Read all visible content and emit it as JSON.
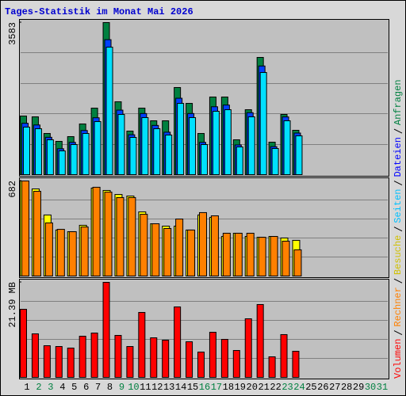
{
  "chart_data": {
    "type": "bar",
    "title": "Tages-Statistik im Monat Mai 2026",
    "categories": [
      "1",
      "2",
      "3",
      "4",
      "5",
      "6",
      "7",
      "8",
      "9",
      "10",
      "11",
      "12",
      "13",
      "14",
      "15",
      "16",
      "17",
      "18",
      "19",
      "20",
      "21",
      "22",
      "23",
      "24",
      "25",
      "26",
      "27",
      "28",
      "29",
      "30",
      "31"
    ],
    "category_colors": [
      "#000000",
      "#008040",
      "#008040",
      "#000000",
      "#000000",
      "#000000",
      "#000000",
      "#000000",
      "#008040",
      "#008040",
      "#000000",
      "#000000",
      "#000000",
      "#000000",
      "#000000",
      "#008040",
      "#008040",
      "#000000",
      "#000000",
      "#000000",
      "#000000",
      "#000000",
      "#008040",
      "#008040",
      "#000000",
      "#000000",
      "#000000",
      "#000000",
      "#000000",
      "#008040",
      "#008040"
    ],
    "grid": true,
    "panels": [
      {
        "ylim": [
          0,
          3583
        ],
        "yticks": [
          3583
        ],
        "series": [
          {
            "name": "Anfragen",
            "color": "#008040",
            "text_color": "#008040",
            "values": [
              1381,
              1362,
              970,
              784,
              896,
              1194,
              1567,
              3583,
              1717,
              1026,
              1567,
              1269,
              1269,
              2053,
              1679,
              970,
              1829,
              1829,
              821,
              1530,
              2762,
              765,
              1418,
              1045,
              null,
              null,
              null,
              null,
              null,
              null,
              null
            ]
          },
          {
            "name": "Dateien",
            "color": "#0040ff",
            "text_color": "#0000ff",
            "values": [
              1210,
              1170,
              880,
              610,
              760,
              1040,
              1340,
              3180,
              1520,
              940,
              1440,
              1160,
              1000,
              1800,
              1440,
              760,
              1600,
              1640,
              700,
              1460,
              2560,
              660,
              1360,
              980,
              null,
              null,
              null,
              null,
              null,
              null,
              null
            ]
          },
          {
            "name": "Seiten",
            "color": "#00e0ff",
            "text_color": "#00c0ff",
            "values": [
              1120,
              1082,
              821,
              560,
              709,
              970,
              1250,
              3004,
              1418,
              877,
              1344,
              1082,
              933,
              1679,
              1344,
              709,
              1493,
              1530,
              653,
              1362,
              2407,
              616,
              1269,
              914,
              null,
              null,
              null,
              null,
              null,
              null,
              null
            ]
          }
        ]
      },
      {
        "ylim": [
          0,
          682
        ],
        "yticks": [
          682
        ],
        "series": [
          {
            "name": "Besuche",
            "color": "#ffff00",
            "text_color": "#d0c000",
            "values": [
              682,
              625,
              438,
              330,
              318,
              364,
              631,
              614,
              585,
              574,
              460,
              375,
              358,
              358,
              330,
              438,
              421,
              284,
              307,
              284,
              278,
              284,
              273,
              256,
              null,
              null,
              null,
              null,
              null,
              null,
              null
            ]
          },
          {
            "name": "Rechner",
            "color": "#ff8000",
            "text_color": "#ff8000",
            "values": [
              682,
              608,
              381,
              335,
              318,
              352,
              637,
              602,
              563,
              563,
              443,
              375,
              341,
              409,
              330,
              455,
              432,
              307,
              307,
              307,
              278,
              284,
              250,
              188,
              null,
              null,
              null,
              null,
              null,
              null,
              null
            ]
          }
        ]
      },
      {
        "ylim": [
          0,
          21.39
        ],
        "yticks": [
          {
            "value": 21.39,
            "label": "21.39 MB"
          }
        ],
        "series": [
          {
            "name": "Volumen",
            "color": "#ff0000",
            "text_color": "#ff0000",
            "values": [
              15.33,
              9.8,
              7.13,
              6.95,
              6.6,
              9.27,
              9.98,
              21.39,
              9.45,
              6.95,
              14.62,
              8.91,
              8.38,
              15.86,
              8.02,
              5.7,
              10.16,
              8.56,
              6.06,
              13.19,
              16.4,
              4.63,
              9.63,
              5.88,
              null,
              null,
              null,
              null,
              null,
              null,
              null
            ]
          }
        ]
      }
    ]
  }
}
